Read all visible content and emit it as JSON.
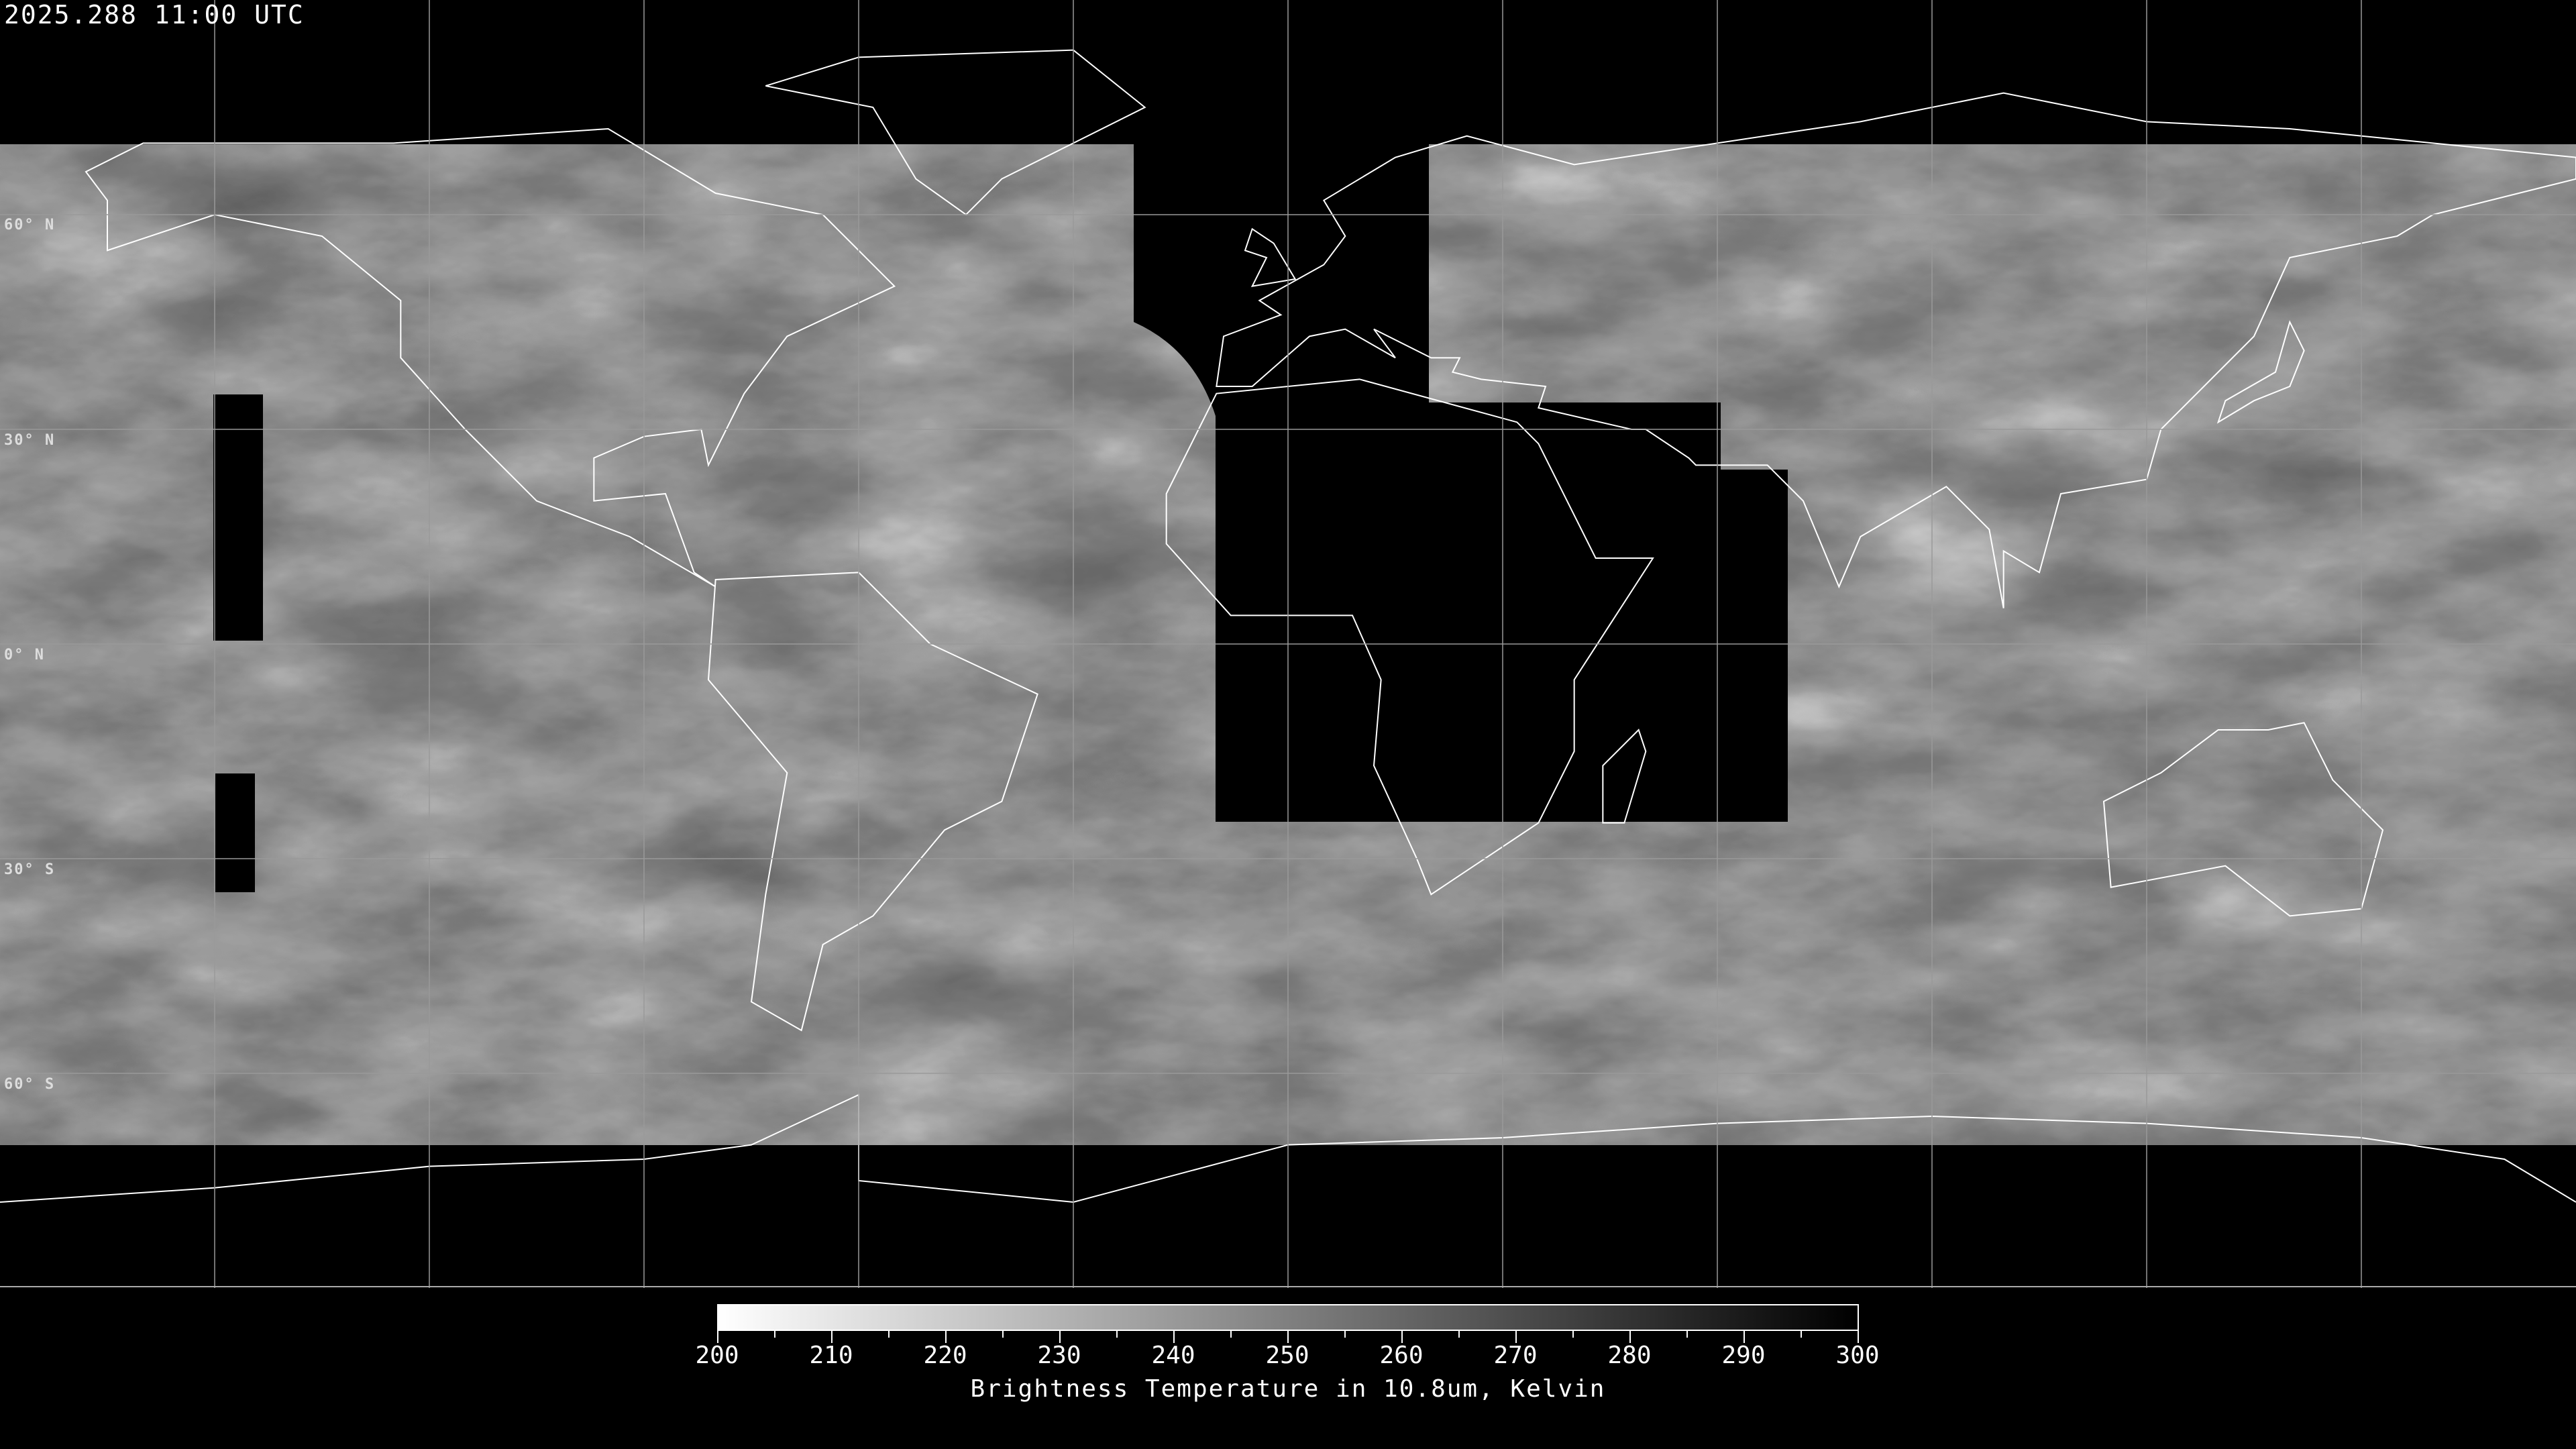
{
  "header": {
    "timestamp": "2025.288 11:00 UTC"
  },
  "map": {
    "projection": "equirectangular",
    "lon_range": [
      -180,
      180
    ],
    "lat_range": [
      -90,
      90
    ],
    "grid_spacing_deg": 30,
    "lat_labels": [
      "60° N",
      "30° N",
      "0° N",
      "30° S",
      "60° S"
    ],
    "imagery": "grayscale infrared brightness temperature"
  },
  "colorbar": {
    "min": 200,
    "max": 300,
    "colors": [
      "#ffffff",
      "#000000"
    ],
    "tick_labels": [
      "200",
      "210",
      "220",
      "230",
      "240",
      "250",
      "260",
      "270",
      "280",
      "290",
      "300"
    ],
    "title": "Brightness Temperature in 10.8um, Kelvin"
  }
}
